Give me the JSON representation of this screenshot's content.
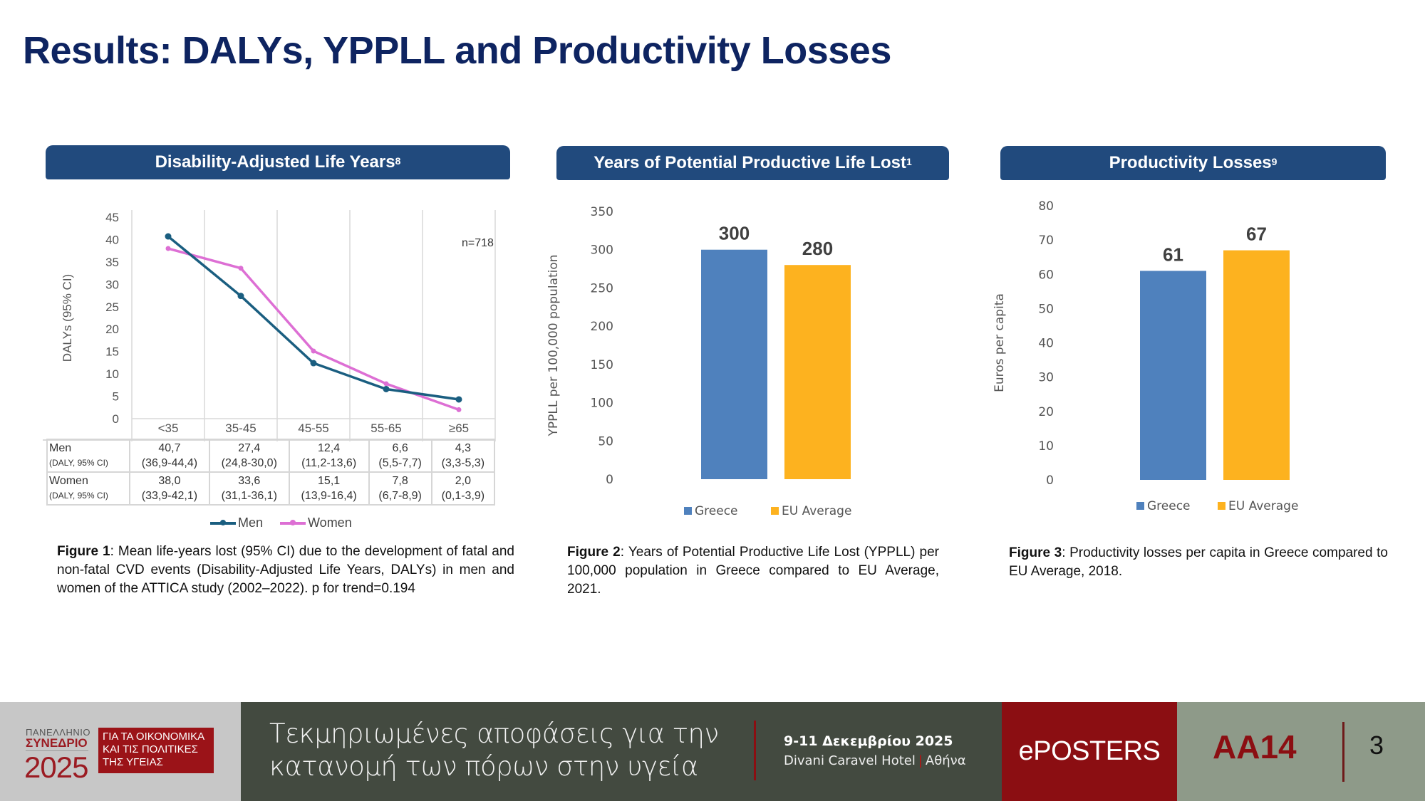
{
  "page": {
    "title": "Results: DALYs, YPPLL and Productivity Losses"
  },
  "sections": [
    {
      "header": "Disability-Adjusted Life Years",
      "sup": "8"
    },
    {
      "header": "Years of Potential Productive Life Lost",
      "sup": "1"
    },
    {
      "header": "Productivity Losses",
      "sup": "9"
    }
  ],
  "chart_data": [
    {
      "type": "line",
      "title": "Disability-Adjusted Life Years",
      "ylabel": "DALYs (95% CI)",
      "xlabel": "",
      "ylim": [
        0,
        45
      ],
      "yticks": [
        0,
        5,
        10,
        15,
        20,
        25,
        30,
        35,
        40,
        45
      ],
      "categories": [
        "<35",
        "35-45",
        "45-55",
        "55-65",
        "≥65"
      ],
      "annotation": "n=718",
      "grid": "vertical",
      "legend": "bottom",
      "series": [
        {
          "name": "Men",
          "color": "#1a5e80",
          "values": [
            40.7,
            27.4,
            12.4,
            6.6,
            4.3
          ],
          "ci": [
            "(36,9-44,4)",
            "(24,8-30,0)",
            "(11,2-13,6)",
            "(5,5-7,7)",
            "(3,3-5,3)"
          ],
          "labels": [
            "40,7",
            "27,4",
            "12,4",
            "6,6",
            "4,3"
          ]
        },
        {
          "name": "Women",
          "color": "#dd6fd4",
          "values": [
            38.0,
            33.6,
            15.1,
            7.8,
            2.0
          ],
          "ci": [
            "(33,9-42,1)",
            "(31,1-36,1)",
            "(13,9-16,4)",
            "(6,7-8,9)",
            "(0,1-3,9)"
          ],
          "labels": [
            "38,0",
            "33,6",
            "15,1",
            "7,8",
            "2,0"
          ]
        }
      ],
      "table_row_sublabel": "(DALY, 95% CI)"
    },
    {
      "type": "bar",
      "title": "Years of Potential Productive Life Lost",
      "ylabel": "YPPLL per 100,000 population",
      "xlabel": "",
      "ylim": [
        0,
        350
      ],
      "yticks": [
        0,
        50,
        100,
        150,
        200,
        250,
        300,
        350
      ],
      "categories": [
        "Greece",
        "EU Average"
      ],
      "values": [
        300,
        280
      ],
      "colors": [
        "#4f81bd",
        "#fdb21f"
      ],
      "legend": "bottom"
    },
    {
      "type": "bar",
      "title": "Productivity Losses",
      "ylabel": "Euros per capita",
      "xlabel": "",
      "ylim": [
        0,
        80
      ],
      "yticks": [
        0,
        10,
        20,
        30,
        40,
        50,
        60,
        70,
        80
      ],
      "categories": [
        "Greece",
        "EU Average"
      ],
      "values": [
        61,
        67
      ],
      "colors": [
        "#4f81bd",
        "#fdb21f"
      ],
      "legend": "bottom"
    }
  ],
  "captions": [
    {
      "label": "Figure 1",
      "text": ": Mean life-years lost (95% CI) due to the development of fatal and non-fatal CVD events (Disability-Adjusted Life Years, DALYs) in men and women of the ATTICA study (2002–2022). p for trend=0.194"
    },
    {
      "label": "Figure 2",
      "text": ": Years of Potential Productive Life Lost (YPPLL) per 100,000 population in Greece compared to EU Average, 2021."
    },
    {
      "label": "Figure 3",
      "text": ": Productivity losses per capita in Greece compared to EU Average, 2018."
    }
  ],
  "footer": {
    "logo_small": "ΠΑΝΕΛΛΗΝΙΟ",
    "logo_syn": "ΣΥΝΕΔΡΙΟ",
    "logo_year": "2025",
    "logo_box_lines": [
      "ΓΙΑ ΤΑ ΟΙΚΟΝΟΜΙΚΑ",
      "ΚΑΙ ΤΙΣ ΠΟΛΙΤΙΚΕΣ",
      "ΤΗΣ ΥΓΕΙΑΣ"
    ],
    "tagline_lines": [
      "Τεκμηριωμένες αποφάσεις για την",
      "κατανομή των πόρων στην υγεία"
    ],
    "event_date": "9-11 Δεκεμβρίου 2025",
    "event_venue": "Divani Caravel Hotel",
    "event_city": "Αθήνα",
    "eposters": "ePOSTERS",
    "poster_code": "AA14",
    "page_number": "3"
  },
  "colors": {
    "title": "#0e2461",
    "header_bg": "#214a7d",
    "greece": "#4f81bd",
    "eu": "#fdb21f",
    "men": "#1a5e80",
    "women": "#dd6fd4",
    "brand_red": "#8b0e12"
  }
}
